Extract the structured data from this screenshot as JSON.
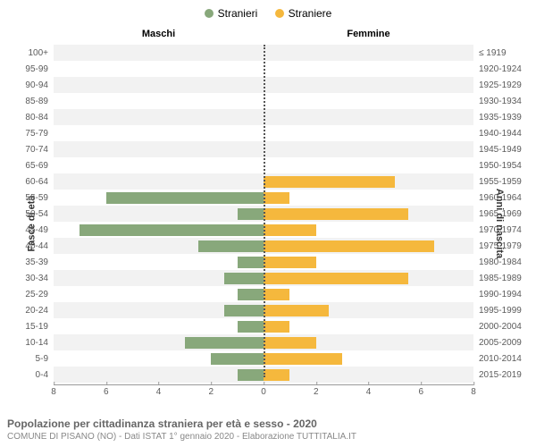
{
  "chart": {
    "type": "population-pyramid",
    "legend": {
      "male": {
        "label": "Stranieri",
        "color": "#88a87b"
      },
      "female": {
        "label": "Straniere",
        "color": "#f5b83d"
      }
    },
    "header_male": "Maschi",
    "header_female": "Femmine",
    "y_left_title": "Fasce di età",
    "y_right_title": "Anni di nascita",
    "x_max": 8,
    "x_ticks": [
      8,
      6,
      4,
      2,
      0,
      2,
      4,
      6,
      8
    ],
    "bg_even": "#ffffff",
    "bg_odd": "#f2f2f2",
    "axis_color": "#999999",
    "label_color": "#5b5b5b",
    "rows": [
      {
        "age": "100+",
        "birth": "≤ 1919",
        "m": 0,
        "f": 0
      },
      {
        "age": "95-99",
        "birth": "1920-1924",
        "m": 0,
        "f": 0
      },
      {
        "age": "90-94",
        "birth": "1925-1929",
        "m": 0,
        "f": 0
      },
      {
        "age": "85-89",
        "birth": "1930-1934",
        "m": 0,
        "f": 0
      },
      {
        "age": "80-84",
        "birth": "1935-1939",
        "m": 0,
        "f": 0
      },
      {
        "age": "75-79",
        "birth": "1940-1944",
        "m": 0,
        "f": 0
      },
      {
        "age": "70-74",
        "birth": "1945-1949",
        "m": 0,
        "f": 0
      },
      {
        "age": "65-69",
        "birth": "1950-1954",
        "m": 0,
        "f": 0
      },
      {
        "age": "60-64",
        "birth": "1955-1959",
        "m": 0,
        "f": 5
      },
      {
        "age": "55-59",
        "birth": "1960-1964",
        "m": 6,
        "f": 1
      },
      {
        "age": "50-54",
        "birth": "1965-1969",
        "m": 1,
        "f": 5.5
      },
      {
        "age": "45-49",
        "birth": "1970-1974",
        "m": 7,
        "f": 2
      },
      {
        "age": "40-44",
        "birth": "1975-1979",
        "m": 2.5,
        "f": 6.5
      },
      {
        "age": "35-39",
        "birth": "1980-1984",
        "m": 1,
        "f": 2
      },
      {
        "age": "30-34",
        "birth": "1985-1989",
        "m": 1.5,
        "f": 5.5
      },
      {
        "age": "25-29",
        "birth": "1990-1994",
        "m": 1,
        "f": 1
      },
      {
        "age": "20-24",
        "birth": "1995-1999",
        "m": 1.5,
        "f": 2.5
      },
      {
        "age": "15-19",
        "birth": "2000-2004",
        "m": 1,
        "f": 1
      },
      {
        "age": "10-14",
        "birth": "2005-2009",
        "m": 3,
        "f": 2
      },
      {
        "age": "5-9",
        "birth": "2010-2014",
        "m": 2,
        "f": 3
      },
      {
        "age": "0-4",
        "birth": "2015-2019",
        "m": 1,
        "f": 1
      }
    ]
  },
  "caption": {
    "title": "Popolazione per cittadinanza straniera per età e sesso - 2020",
    "sub": "COMUNE DI PISANO (NO) - Dati ISTAT 1° gennaio 2020 - Elaborazione TUTTITALIA.IT"
  }
}
